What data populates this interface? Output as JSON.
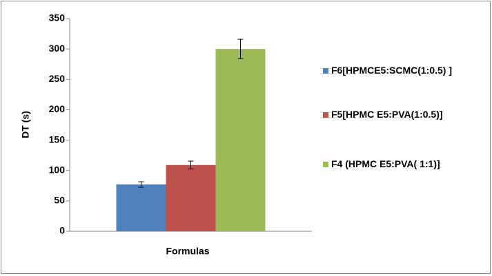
{
  "chart_data": {
    "type": "bar",
    "x_label": "Formulas",
    "y_label": "DT (s)",
    "categories": [
      "Formulas"
    ],
    "series": [
      {
        "name": "F6[HPMCE5:SCMC(1:0.5) ]",
        "color": "#4f81bd",
        "values": [
          77
        ],
        "errors": [
          4.5
        ]
      },
      {
        "name": "F5[HPMC E5:PVA(1:0.5)]",
        "color": "#c0504d",
        "values": [
          109
        ],
        "errors": [
          6.5
        ]
      },
      {
        "name": "F4 (HPMC E5:PVA( 1:1)]",
        "color": "#9bbb59",
        "values": [
          300
        ],
        "errors": [
          16
        ]
      }
    ],
    "ylim": [
      0,
      350
    ],
    "yticks": [
      0,
      50,
      100,
      150,
      200,
      250,
      300,
      350
    ],
    "legend": "right"
  }
}
